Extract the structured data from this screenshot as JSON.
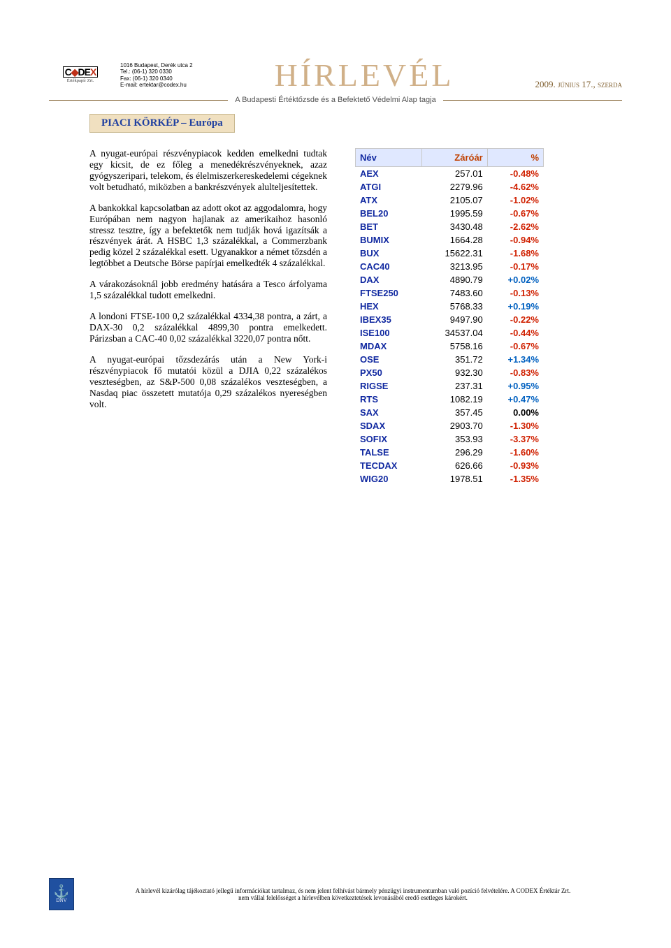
{
  "header": {
    "logo_main": "C◆DEX",
    "logo_sub": "Értékpapír Zrt.",
    "address": {
      "l1": "1016 Budapest, Derék utca 2",
      "l2": "Tel.: (06-1) 320 0330",
      "l3": "Fax: (06-1) 320 0340",
      "l4": "E-mail: ertektar@codex.hu"
    },
    "title": "HÍRLEVÉL",
    "date": "2009. június 17., szerda",
    "subhead": "A Budapesti Értéktőzsde és a Befektető Védelmi Alap tagja"
  },
  "section_title": "PIACI KÖRKÉP – Európa",
  "article": {
    "p1": "A  nyugat-európai  részvénypiacok kedden emelkedni tudtak egy kicsit, de ez főleg  a  menedékrészvényeknek,  azaz gyógyszeripari,    telekom,    és élelmiszerkereskedelemi   cégeknek   volt betudható,  miközben  a  bankrészvények alulteljesítettek.",
    "p2": "A bankokkal kapcsolatban az adott okot az aggodalomra, hogy Európában nem nagyon hajlanak az amerikaihoz hasonló stressz tesztre, így a befektetők nem tudják hová igazítsák a részvények árát. A HSBC 1,3 százalékkal, a Commerzbank pedig közel 2 százalékkal esett. Ugyanakkor a német tőzsdén a legtöbbet a Deutsche Börse papírjai emelkedték 4 százalékkal.",
    "p3": "A várakozásoknál jobb eredmény hatására a Tesco árfolyama 1,5 százalékkal tudott emelkedni.",
    "p4": "A londoni FTSE-100 0,2 százalékkal 4334,38 pontra, a zárt, a DAX-30 0,2 százalékkal 4899,30 pontra emelkedett. Párizsban a CAC-40 0,02 százalékkal 3220,07 pontra nőtt.",
    "p5": "A nyugat-európai tőzsdezárás után a New York-i részvénypiacok fő mutatói közül a DJIA 0,22 százalékos veszteségben, az S&P-500 0,08 százalékos veszteségben, a Nasdaq piac összetett mutatója 0,29 százalékos nyereségben volt."
  },
  "table": {
    "headers": {
      "name": "Név",
      "close": "Záróár",
      "pct": "%"
    },
    "neg_color": "#d02000",
    "pos_color": "#0060c0",
    "neutral_color": "#000000",
    "rows": [
      {
        "n": "AEX",
        "v": "257.01",
        "p": "-0.48%",
        "c": "neg"
      },
      {
        "n": "ATGI",
        "v": "2279.96",
        "p": "-4.62%",
        "c": "neg"
      },
      {
        "n": "ATX",
        "v": "2105.07",
        "p": "-1.02%",
        "c": "neg"
      },
      {
        "n": "BEL20",
        "v": "1995.59",
        "p": "-0.67%",
        "c": "neg"
      },
      {
        "n": "BET",
        "v": "3430.48",
        "p": "-2.62%",
        "c": "neg"
      },
      {
        "n": "BUMIX",
        "v": "1664.28",
        "p": "-0.94%",
        "c": "neg"
      },
      {
        "n": "BUX",
        "v": "15622.31",
        "p": "-1.68%",
        "c": "neg"
      },
      {
        "n": "CAC40",
        "v": "3213.95",
        "p": "-0.17%",
        "c": "neg"
      },
      {
        "n": "DAX",
        "v": "4890.79",
        "p": "+0.02%",
        "c": "pos"
      },
      {
        "n": "FTSE250",
        "v": "7483.60",
        "p": "-0.13%",
        "c": "neg"
      },
      {
        "n": "HEX",
        "v": "5768.33",
        "p": "+0.19%",
        "c": "pos"
      },
      {
        "n": "IBEX35",
        "v": "9497.90",
        "p": "-0.22%",
        "c": "neg"
      },
      {
        "n": "ISE100",
        "v": "34537.04",
        "p": "-0.44%",
        "c": "neg"
      },
      {
        "n": "MDAX",
        "v": "5758.16",
        "p": "-0.67%",
        "c": "neg"
      },
      {
        "n": "OSE",
        "v": "351.72",
        "p": "+1.34%",
        "c": "pos"
      },
      {
        "n": "PX50",
        "v": "932.30",
        "p": "-0.83%",
        "c": "neg"
      },
      {
        "n": "RIGSE",
        "v": "237.31",
        "p": "+0.95%",
        "c": "pos"
      },
      {
        "n": "RTS",
        "v": "1082.19",
        "p": "+0.47%",
        "c": "pos"
      },
      {
        "n": "SAX",
        "v": "357.45",
        "p": "0.00%",
        "c": "neu"
      },
      {
        "n": "SDAX",
        "v": "2903.70",
        "p": "-1.30%",
        "c": "neg"
      },
      {
        "n": "SOFIX",
        "v": "353.93",
        "p": "-3.37%",
        "c": "neg"
      },
      {
        "n": "TALSE",
        "v": "296.29",
        "p": "-1.60%",
        "c": "neg"
      },
      {
        "n": "TECDAX",
        "v": "626.66",
        "p": "-0.93%",
        "c": "neg"
      },
      {
        "n": "WIG20",
        "v": "1978.51",
        "p": "-1.35%",
        "c": "neg"
      }
    ]
  },
  "footer": {
    "line1": "A hírlevél kizárólag tájékoztató jellegű információkat tartalmaz, és nem jelent felhívást bármely pénzügyi instrumentumban való pozíció felvételére. A CODEX Értéktár Zrt.",
    "line2": "nem vállal felelősséget a hírlevélben következtetések levonásából eredő esetleges károkért."
  }
}
